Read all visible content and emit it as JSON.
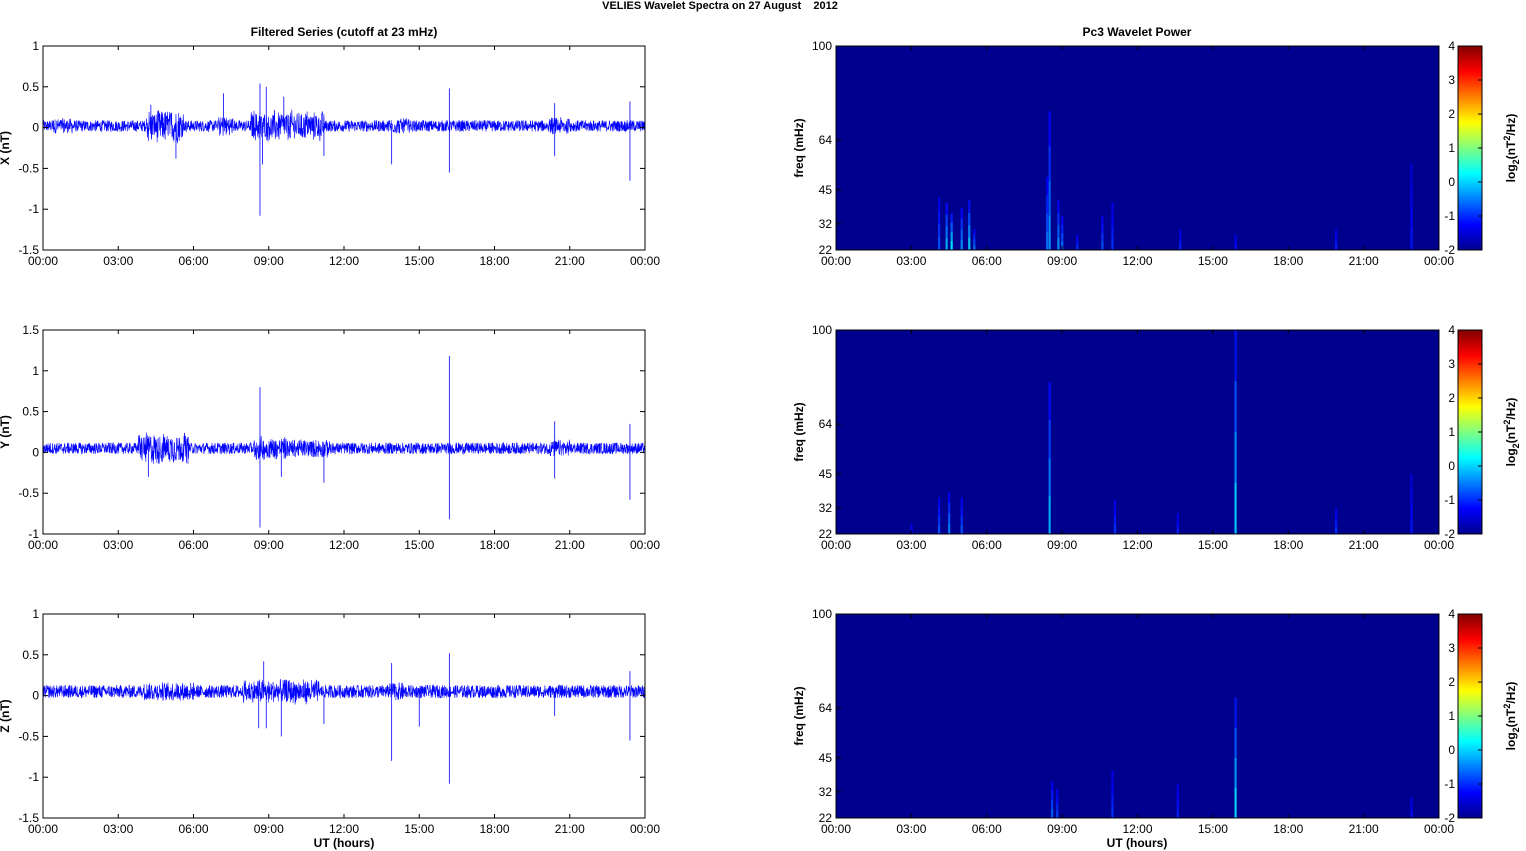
{
  "figure_title": "VELIES Wavelet Spectra on 27 August    2012",
  "left_title": "Filtered Series (cutoff at 23 mHz)",
  "right_title": "Pc3 Wavelet Power",
  "x_label": "UT (hours)",
  "colors": {
    "trace": "#0000ff",
    "background": "#00008f",
    "axis": "#000000"
  },
  "chart_data": [
    {
      "type": "line",
      "panel": "X",
      "ylabel": "X (nT)",
      "xlim": [
        0,
        24
      ],
      "ylim": [
        -1.5,
        1
      ],
      "xticks": [
        "00:00",
        "03:00",
        "06:00",
        "09:00",
        "12:00",
        "15:00",
        "18:00",
        "21:00",
        "00:00"
      ],
      "yticks": [
        "-1.5",
        "-1",
        "-0.5",
        "0",
        "0.5",
        "1"
      ],
      "baseline": 0.02,
      "noise_amplitude": 0.07,
      "bursts": [
        [
          4.1,
          5.6,
          0.16
        ],
        [
          7.0,
          7.6,
          0.08
        ],
        [
          8.3,
          11.2,
          0.14
        ],
        [
          0.4,
          1.2,
          0.03
        ],
        [
          13.8,
          14.6,
          0.03
        ],
        [
          20.2,
          21.0,
          0.04
        ]
      ],
      "spikes": [
        [
          8.65,
          -1.08
        ],
        [
          8.65,
          0.54
        ],
        [
          8.75,
          -0.45
        ],
        [
          8.9,
          0.5
        ],
        [
          7.2,
          0.42
        ],
        [
          9.6,
          0.38
        ],
        [
          11.2,
          -0.35
        ],
        [
          13.9,
          -0.45
        ],
        [
          16.2,
          0.48
        ],
        [
          16.2,
          -0.55
        ],
        [
          20.4,
          -0.35
        ],
        [
          20.4,
          0.3
        ],
        [
          23.4,
          -0.65
        ],
        [
          23.4,
          0.32
        ],
        [
          5.3,
          -0.38
        ],
        [
          4.3,
          0.28
        ]
      ]
    },
    {
      "type": "line",
      "panel": "Y",
      "ylabel": "Y (nT)",
      "xlim": [
        0,
        24
      ],
      "ylim": [
        -1,
        1.5
      ],
      "xticks": [
        "00:00",
        "03:00",
        "06:00",
        "09:00",
        "12:00",
        "15:00",
        "18:00",
        "21:00",
        "00:00"
      ],
      "yticks": [
        "-1",
        "-0.5",
        "0",
        "0.5",
        "1",
        "1.5"
      ],
      "baseline": 0.05,
      "noise_amplitude": 0.07,
      "bursts": [
        [
          3.8,
          5.8,
          0.14
        ],
        [
          8.4,
          9.8,
          0.09
        ],
        [
          9.8,
          11.5,
          0.05
        ],
        [
          20.2,
          21.0,
          0.04
        ]
      ],
      "spikes": [
        [
          8.65,
          -0.92
        ],
        [
          8.65,
          0.8
        ],
        [
          16.2,
          1.18
        ],
        [
          16.2,
          -0.82
        ],
        [
          20.4,
          0.38
        ],
        [
          20.4,
          -0.32
        ],
        [
          23.4,
          -0.58
        ],
        [
          23.4,
          0.35
        ],
        [
          11.2,
          -0.37
        ],
        [
          9.5,
          -0.3
        ],
        [
          4.2,
          -0.3
        ]
      ]
    },
    {
      "type": "line",
      "panel": "Z",
      "ylabel": "Z (nT)",
      "xlim": [
        0,
        24
      ],
      "ylim": [
        -1.5,
        1
      ],
      "xticks": [
        "00:00",
        "03:00",
        "06:00",
        "09:00",
        "12:00",
        "15:00",
        "18:00",
        "21:00",
        "00:00"
      ],
      "yticks": [
        "-1.5",
        "-1",
        "-0.5",
        "0",
        "0.5",
        "1"
      ],
      "baseline": 0.05,
      "noise_amplitude": 0.08,
      "bursts": [
        [
          8.0,
          11.0,
          0.08
        ],
        [
          4.0,
          6.0,
          0.04
        ],
        [
          13.8,
          14.4,
          0.04
        ]
      ],
      "spikes": [
        [
          13.9,
          -0.8
        ],
        [
          13.9,
          0.4
        ],
        [
          16.2,
          -1.08
        ],
        [
          16.2,
          0.52
        ],
        [
          8.6,
          -0.4
        ],
        [
          8.9,
          -0.4
        ],
        [
          8.8,
          0.42
        ],
        [
          9.5,
          -0.5
        ],
        [
          11.2,
          -0.35
        ],
        [
          15.0,
          -0.38
        ],
        [
          20.4,
          -0.25
        ],
        [
          23.4,
          -0.55
        ],
        [
          23.4,
          0.3
        ]
      ]
    },
    {
      "type": "heatmap",
      "panel": "X",
      "ylabel": "freq (mHz)",
      "xlim": [
        0,
        24
      ],
      "ylim": [
        22,
        100
      ],
      "xticks": [
        "00:00",
        "03:00",
        "06:00",
        "09:00",
        "12:00",
        "15:00",
        "18:00",
        "21:00",
        "00:00"
      ],
      "yticks": [
        "22",
        "32",
        "45",
        "64",
        "100"
      ],
      "colorbar_label": "log2(nT2/Hz)",
      "colorbar_ticks": [
        "-2",
        "-1",
        "0",
        "1",
        "2",
        "3",
        "4"
      ],
      "clim": [
        -2,
        4
      ],
      "features": [
        [
          4.4,
          40,
          0.7
        ],
        [
          4.6,
          36,
          0.9
        ],
        [
          5.0,
          38,
          0.6
        ],
        [
          5.3,
          41,
          0.8
        ],
        [
          5.5,
          30,
          0.5
        ],
        [
          4.1,
          42,
          0.4
        ],
        [
          8.4,
          50,
          0.5
        ],
        [
          8.5,
          75,
          0.6
        ],
        [
          8.85,
          41,
          0.6
        ],
        [
          9.0,
          35,
          0.5
        ],
        [
          9.6,
          28,
          0.3
        ],
        [
          10.6,
          35,
          0.4
        ],
        [
          11.0,
          40,
          0.3
        ],
        [
          13.7,
          30,
          0.25
        ],
        [
          15.9,
          28,
          0.2
        ],
        [
          19.9,
          30,
          0.25
        ],
        [
          22.9,
          55,
          0.2
        ]
      ]
    },
    {
      "type": "heatmap",
      "panel": "Y",
      "ylabel": "freq (mHz)",
      "xlim": [
        0,
        24
      ],
      "ylim": [
        22,
        100
      ],
      "xticks": [
        "00:00",
        "03:00",
        "06:00",
        "09:00",
        "12:00",
        "15:00",
        "18:00",
        "21:00",
        "00:00"
      ],
      "yticks": [
        "22",
        "32",
        "45",
        "64",
        "100"
      ],
      "colorbar_label": "log2(nT2/Hz)",
      "colorbar_ticks": [
        "-2",
        "-1",
        "0",
        "1",
        "2",
        "3",
        "4"
      ],
      "clim": [
        -2,
        4
      ],
      "features": [
        [
          4.1,
          36,
          0.4
        ],
        [
          4.5,
          38,
          0.55
        ],
        [
          5.0,
          36,
          0.4
        ],
        [
          8.5,
          80,
          0.7
        ],
        [
          11.1,
          35,
          0.3
        ],
        [
          13.6,
          30,
          0.25
        ],
        [
          15.9,
          100,
          0.8
        ],
        [
          19.9,
          32,
          0.3
        ],
        [
          22.9,
          45,
          0.2
        ],
        [
          3.0,
          26,
          0.2
        ]
      ]
    },
    {
      "type": "heatmap",
      "panel": "Z",
      "ylabel": "freq (mHz)",
      "xlim": [
        0,
        24
      ],
      "ylim": [
        22,
        100
      ],
      "xticks": [
        "00:00",
        "03:00",
        "06:00",
        "09:00",
        "12:00",
        "15:00",
        "18:00",
        "21:00",
        "00:00"
      ],
      "yticks": [
        "22",
        "32",
        "45",
        "64",
        "100"
      ],
      "colorbar_label": "log2(nT2/Hz)",
      "colorbar_ticks": [
        "-2",
        "-1",
        "0",
        "1",
        "2",
        "3",
        "4"
      ],
      "clim": [
        -2,
        4
      ],
      "features": [
        [
          8.6,
          36,
          0.45
        ],
        [
          8.8,
          33,
          0.35
        ],
        [
          11.0,
          40,
          0.3
        ],
        [
          13.6,
          35,
          0.25
        ],
        [
          15.9,
          68,
          0.85
        ],
        [
          22.9,
          30,
          0.2
        ]
      ]
    }
  ]
}
